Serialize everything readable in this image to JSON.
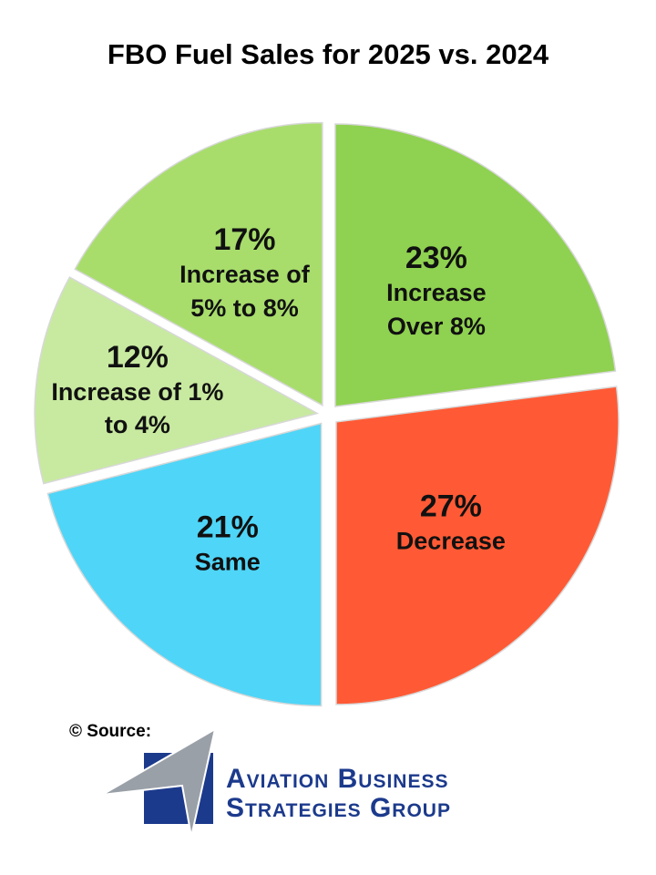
{
  "chart_data": {
    "type": "pie",
    "title": "FBO Fuel Sales for 2025 vs. 2024",
    "categories": [
      "Increase Over 8%",
      "Decrease",
      "Same",
      "Increase of 1% to 4%",
      "Increase of 5% to 8%"
    ],
    "values": [
      23,
      27,
      21,
      12,
      17
    ],
    "value_labels": [
      "23%",
      "27%",
      "21%",
      "12%",
      "17%"
    ],
    "colors": [
      "#8fd150",
      "#ff5a35",
      "#4fd5f7",
      "#c8eaa0",
      "#a8dd6c"
    ]
  },
  "source": {
    "label": "© Source:",
    "org_line1": "Aviation Business",
    "org_line2": "Strategies Group"
  }
}
